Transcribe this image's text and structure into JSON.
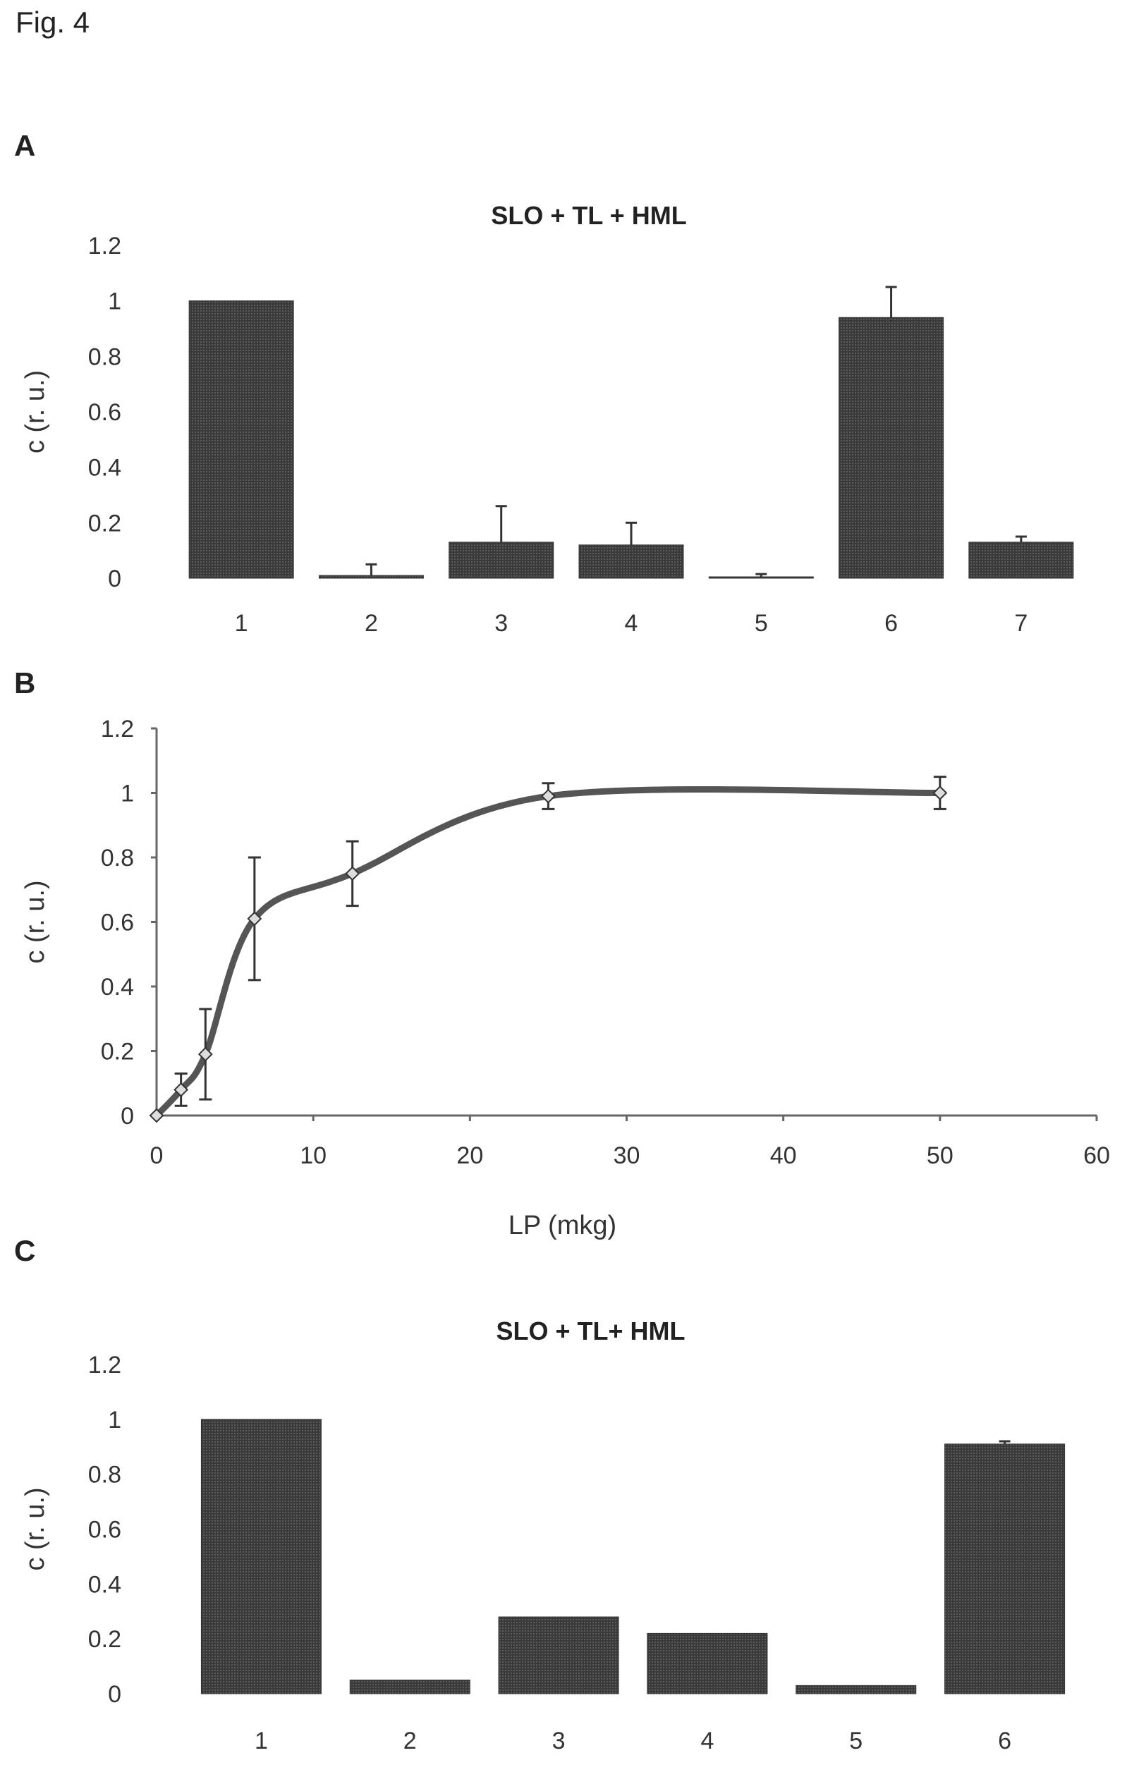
{
  "figure_label": "Fig. 4",
  "panels": [
    {
      "letter": "A"
    },
    {
      "letter": "B"
    },
    {
      "letter": "C"
    }
  ],
  "chart_data": [
    {
      "type": "bar",
      "title": "SLO + TL + HML",
      "ylabel": "c (r. u.)",
      "xlabel": "",
      "ylim": [
        0,
        1.2
      ],
      "yticks": [
        "0",
        "0.2",
        "0.4",
        "0.6",
        "0.8",
        "1",
        "1.2"
      ],
      "categories": [
        "1",
        "2",
        "3",
        "4",
        "5",
        "6",
        "7"
      ],
      "values": [
        1.0,
        0.01,
        0.13,
        0.12,
        0.005,
        0.94,
        0.13
      ],
      "errors": [
        0,
        0.04,
        0.13,
        0.08,
        0.01,
        0.11,
        0.02
      ],
      "grid": false
    },
    {
      "type": "line",
      "title": "",
      "ylabel": "c (r. u.)",
      "xlabel": "LP (mkg)",
      "xlim": [
        0,
        60
      ],
      "ylim": [
        0,
        1.2
      ],
      "xticks": [
        "0",
        "10",
        "20",
        "30",
        "40",
        "50",
        "60"
      ],
      "yticks": [
        "0",
        "0.2",
        "0.4",
        "0.6",
        "0.8",
        "1",
        "1.2"
      ],
      "x": [
        0,
        1.56,
        3.12,
        6.25,
        12.5,
        25,
        50
      ],
      "y": [
        0,
        0.08,
        0.19,
        0.61,
        0.75,
        0.99,
        1.0
      ],
      "errors": [
        0,
        0.05,
        0.14,
        0.19,
        0.1,
        0.04,
        0.05
      ],
      "grid": false
    },
    {
      "type": "bar",
      "title": "SLO + TL+ HML",
      "ylabel": "c (r. u.)",
      "xlabel": "",
      "ylim": [
        0,
        1.2
      ],
      "yticks": [
        "0",
        "0.2",
        "0.4",
        "0.6",
        "0.8",
        "1",
        "1.2"
      ],
      "categories": [
        "1",
        "2",
        "3",
        "4",
        "5",
        "6"
      ],
      "values": [
        1.0,
        0.05,
        0.28,
        0.22,
        0.03,
        0.91
      ],
      "errors": [
        0,
        0,
        0,
        0,
        0,
        0.01
      ],
      "grid": false
    }
  ]
}
